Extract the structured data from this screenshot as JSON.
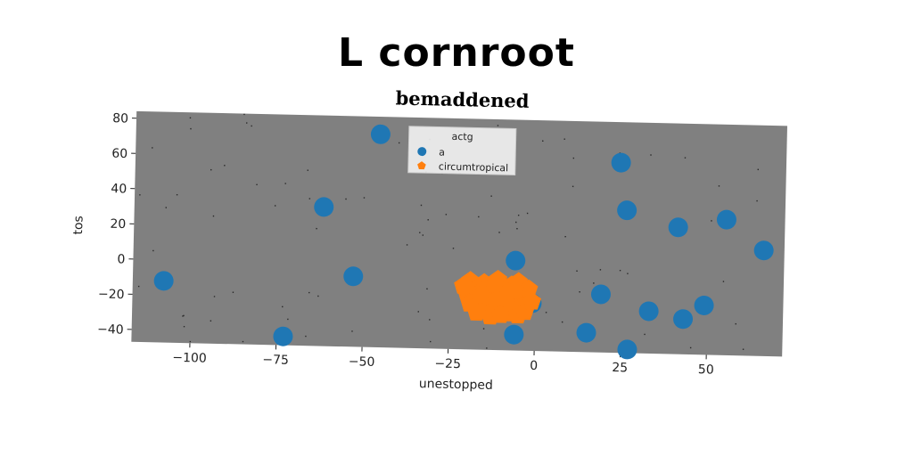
{
  "suptitle": "L cornroot",
  "chart_data": {
    "type": "scatter",
    "title": "bemaddened",
    "xlabel": "unestopped",
    "ylabel": "tos",
    "xlim": [
      -117,
      72
    ],
    "ylim": [
      -47,
      84
    ],
    "xticks": [
      -100,
      -75,
      -50,
      -25,
      0,
      25,
      50
    ],
    "yticks": [
      -40,
      -20,
      0,
      20,
      40,
      60,
      80
    ],
    "grid": false,
    "background": "#808080",
    "legend": {
      "title": "actg",
      "placement": "top-center"
    },
    "series": [
      {
        "name": "a",
        "marker": "circle",
        "color": "#1f77b4",
        "points": [
          [
            -46,
            74
          ],
          [
            24,
            61
          ],
          [
            -62,
            32
          ],
          [
            26,
            34
          ],
          [
            41,
            25
          ],
          [
            55,
            30
          ],
          [
            66,
            13
          ],
          [
            -6,
            4
          ],
          [
            -108,
            -12
          ],
          [
            -53,
            -7
          ],
          [
            19,
            -14
          ],
          [
            33,
            -23
          ],
          [
            -1,
            -20
          ],
          [
            49,
            -19
          ],
          [
            43,
            -27
          ],
          [
            -6,
            -38
          ],
          [
            15,
            -36
          ],
          [
            27,
            -45
          ],
          [
            -73,
            -42
          ]
        ]
      },
      {
        "name": "circumtropical",
        "marker": "pentagon",
        "color": "#ff7f0e",
        "points": [
          [
            -19,
            -8
          ],
          [
            -17,
            -12
          ],
          [
            -15,
            -9
          ],
          [
            -13,
            -14
          ],
          [
            -11,
            -7
          ],
          [
            -9,
            -11
          ],
          [
            -7,
            -10
          ],
          [
            -5,
            -8
          ],
          [
            -3,
            -15
          ],
          [
            -20,
            -15
          ],
          [
            -18,
            -19
          ],
          [
            -16,
            -22
          ],
          [
            -14,
            -17
          ],
          [
            -12,
            -24
          ],
          [
            -10,
            -20
          ],
          [
            -8,
            -26
          ],
          [
            -6,
            -18
          ],
          [
            -4,
            -22
          ],
          [
            -2,
            -12
          ],
          [
            -21,
            -11
          ],
          [
            -17,
            -26
          ],
          [
            -13,
            -28
          ],
          [
            -9,
            -16
          ],
          [
            -7,
            -23
          ],
          [
            -5,
            -27
          ],
          [
            -11,
            -18
          ],
          [
            -15,
            -13
          ],
          [
            -3,
            -25
          ],
          [
            -19,
            -21
          ],
          [
            -1,
            -19
          ],
          [
            -12,
            -10
          ],
          [
            -8,
            -14
          ],
          [
            -16,
            -16
          ],
          [
            -6,
            -13
          ],
          [
            -10,
            -27
          ]
        ]
      }
    ]
  }
}
